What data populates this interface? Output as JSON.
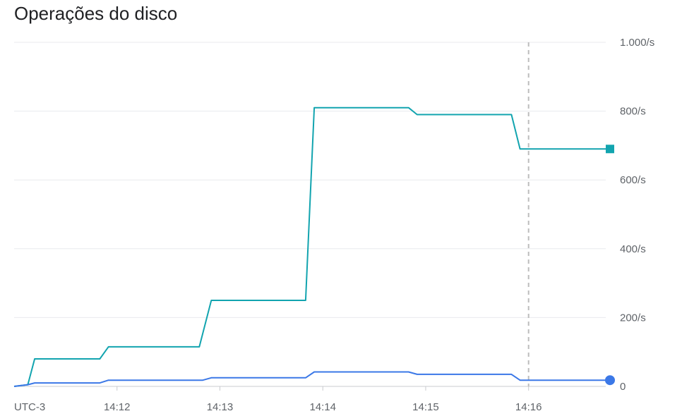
{
  "title": "Operações do disco",
  "chart_data": {
    "type": "line",
    "title": "Operações do disco",
    "timezone_label": "UTC-3",
    "x_ticks": [
      "14:12",
      "14:13",
      "14:14",
      "14:15",
      "14:16"
    ],
    "x_range": [
      "14:11:00",
      "14:16:45"
    ],
    "y_ticks": [
      "0",
      "200/s",
      "400/s",
      "600/s",
      "800/s",
      "1.000/s"
    ],
    "ylim": [
      0,
      1000
    ],
    "grid": true,
    "cursor_time": "14:16",
    "series": [
      {
        "color": "#12a4af",
        "marker": "square",
        "x": [
          "14:11:00",
          "14:11:08",
          "14:11:12",
          "14:11:50",
          "14:11:55",
          "14:12:48",
          "14:12:55",
          "14:13:50",
          "14:13:55",
          "14:14:50",
          "14:14:55",
          "14:15:50",
          "14:15:55",
          "14:16:45"
        ],
        "values": [
          0,
          5,
          80,
          80,
          115,
          115,
          250,
          250,
          810,
          810,
          790,
          790,
          690,
          690
        ]
      },
      {
        "color": "#3b78e7",
        "marker": "circle",
        "x": [
          "14:11:00",
          "14:11:08",
          "14:11:12",
          "14:11:50",
          "14:11:55",
          "14:12:50",
          "14:12:55",
          "14:13:50",
          "14:13:55",
          "14:14:50",
          "14:14:55",
          "14:15:50",
          "14:15:55",
          "14:16:45"
        ],
        "values": [
          0,
          5,
          10,
          10,
          18,
          18,
          25,
          25,
          42,
          42,
          35,
          35,
          18,
          18
        ]
      }
    ]
  }
}
